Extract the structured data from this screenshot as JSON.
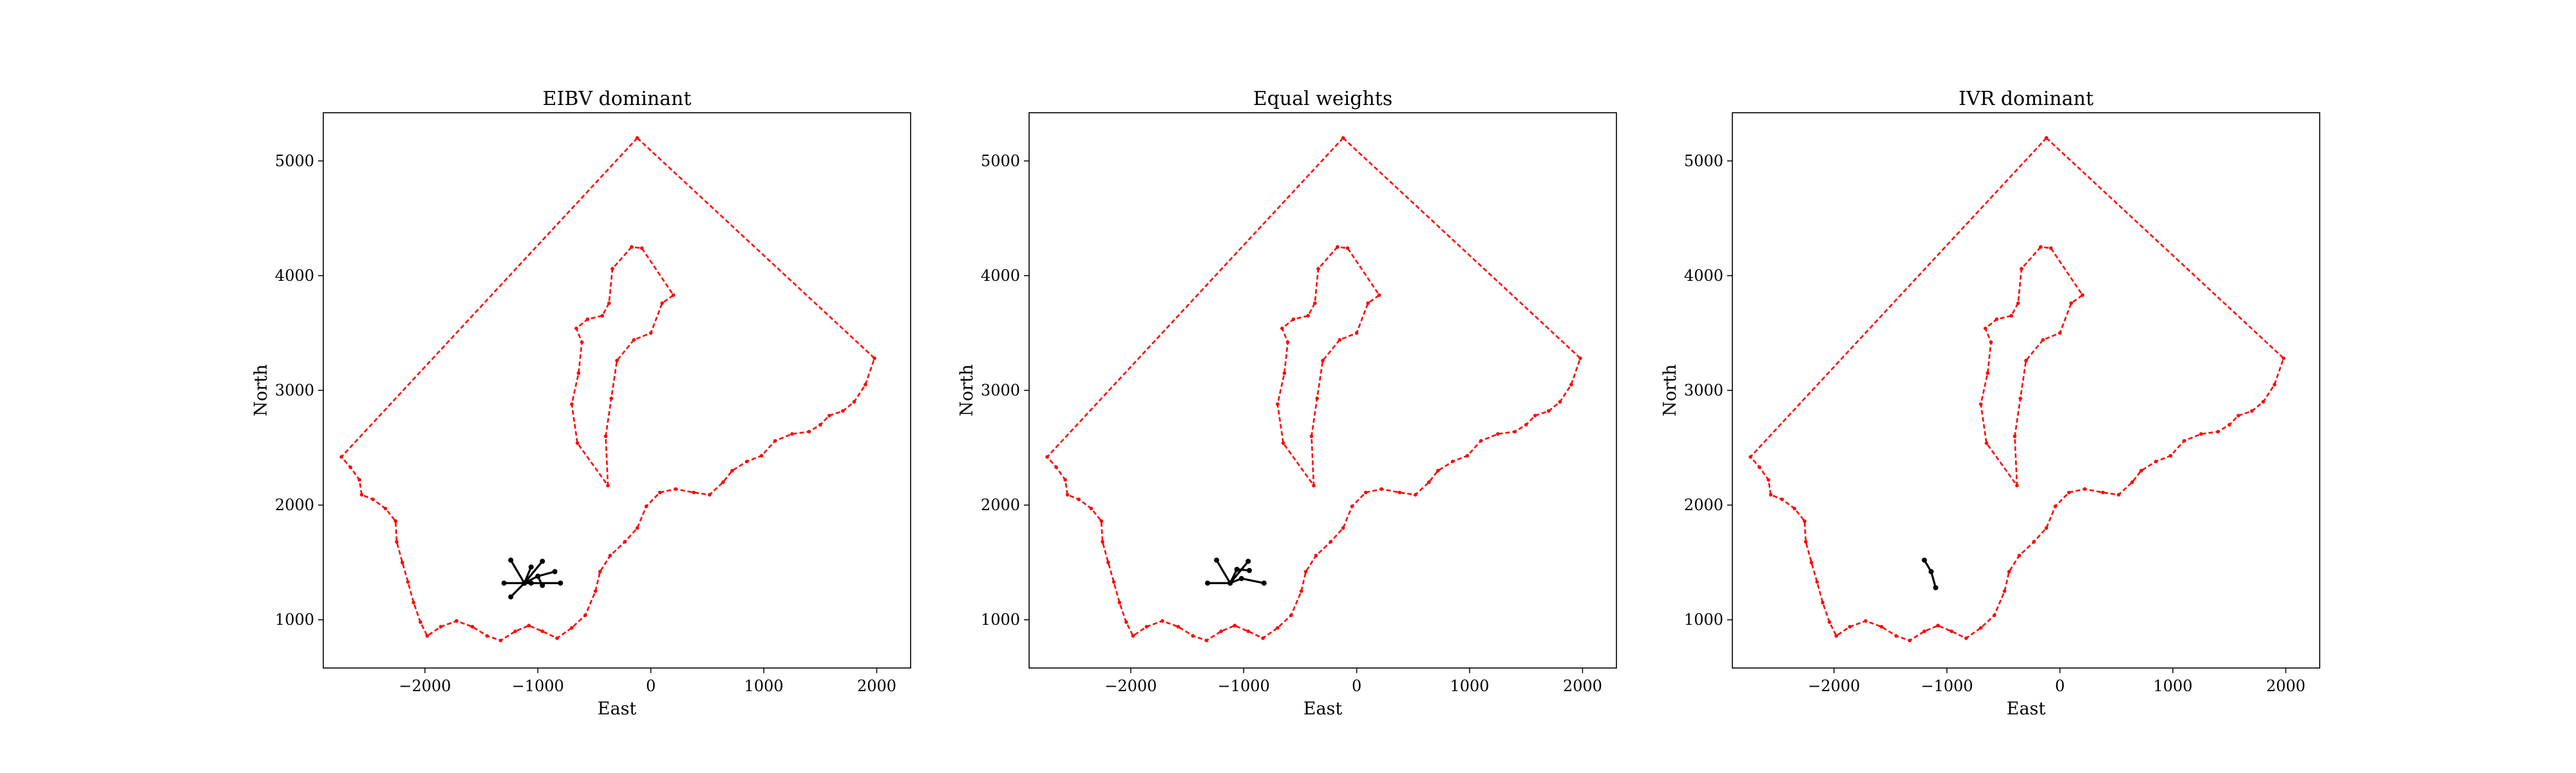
{
  "chart_data": [
    {
      "type": "line",
      "title": "EIBV dominant",
      "xlabel": "East",
      "ylabel": "North",
      "xlim": [
        -2900,
        2300
      ],
      "ylim": [
        580,
        5420
      ],
      "xticks": [
        -2000,
        -1000,
        0,
        1000,
        2000
      ],
      "yticks": [
        1000,
        2000,
        3000,
        4000,
        5000
      ],
      "grid": false,
      "path": {
        "color": "#000000",
        "segments": [
          [
            [
              -1120,
              1320
            ],
            [
              -1240,
              1520
            ]
          ],
          [
            [
              -1120,
              1320
            ],
            [
              -1060,
              1460
            ]
          ],
          [
            [
              -1120,
              1320
            ],
            [
              -960,
              1510
            ]
          ],
          [
            [
              -1120,
              1320
            ],
            [
              -1300,
              1320
            ]
          ],
          [
            [
              -1120,
              1320
            ],
            [
              -1060,
              1320
            ],
            [
              -800,
              1320
            ]
          ],
          [
            [
              -1120,
              1320
            ],
            [
              -1240,
              1200
            ]
          ],
          [
            [
              -1120,
              1320
            ],
            [
              -1000,
              1380
            ],
            [
              -850,
              1420
            ]
          ],
          [
            [
              -1000,
              1380
            ],
            [
              -960,
              1300
            ]
          ]
        ]
      }
    },
    {
      "type": "line",
      "title": "Equal weights",
      "xlabel": "East",
      "ylabel": "North",
      "xlim": [
        -2900,
        2300
      ],
      "ylim": [
        580,
        5420
      ],
      "xticks": [
        -2000,
        -1000,
        0,
        1000,
        2000
      ],
      "yticks": [
        1000,
        2000,
        3000,
        4000,
        5000
      ],
      "grid": false,
      "path": {
        "color": "#000000",
        "segments": [
          [
            [
              -1120,
              1320
            ],
            [
              -1240,
              1520
            ]
          ],
          [
            [
              -1120,
              1320
            ],
            [
              -960,
              1510
            ]
          ],
          [
            [
              -1120,
              1320
            ],
            [
              -1060,
              1440
            ],
            [
              -950,
              1430
            ]
          ],
          [
            [
              -1120,
              1320
            ],
            [
              -1320,
              1320
            ]
          ],
          [
            [
              -1120,
              1320
            ],
            [
              -1020,
              1360
            ],
            [
              -820,
              1320
            ]
          ]
        ]
      }
    },
    {
      "type": "line",
      "title": "IVR dominant",
      "xlabel": "East",
      "ylabel": "North",
      "xlim": [
        -2900,
        2300
      ],
      "ylim": [
        580,
        5420
      ],
      "xticks": [
        -2000,
        -1000,
        0,
        1000,
        2000
      ],
      "yticks": [
        1000,
        2000,
        3000,
        4000,
        5000
      ],
      "grid": false,
      "path": {
        "color": "#000000",
        "segments": [
          [
            [
              -1200,
              1520
            ],
            [
              -1140,
              1420
            ],
            [
              -1100,
              1280
            ]
          ]
        ]
      }
    }
  ],
  "boundary": {
    "color": "#ff0000",
    "outer": [
      [
        -120,
        5200
      ],
      [
        1980,
        3280
      ],
      [
        1900,
        3050
      ],
      [
        1800,
        2900
      ],
      [
        1700,
        2820
      ],
      [
        1580,
        2780
      ],
      [
        1500,
        2700
      ],
      [
        1400,
        2640
      ],
      [
        1250,
        2620
      ],
      [
        1100,
        2560
      ],
      [
        980,
        2430
      ],
      [
        850,
        2380
      ],
      [
        720,
        2300
      ],
      [
        640,
        2200
      ],
      [
        520,
        2090
      ],
      [
        380,
        2110
      ],
      [
        220,
        2140
      ],
      [
        80,
        2110
      ],
      [
        -40,
        1990
      ],
      [
        -120,
        1800
      ],
      [
        -230,
        1680
      ],
      [
        -360,
        1560
      ],
      [
        -450,
        1420
      ],
      [
        -490,
        1250
      ],
      [
        -580,
        1040
      ],
      [
        -700,
        930
      ],
      [
        -830,
        840
      ],
      [
        -960,
        900
      ],
      [
        -1080,
        950
      ],
      [
        -1200,
        900
      ],
      [
        -1330,
        820
      ],
      [
        -1450,
        860
      ],
      [
        -1580,
        940
      ],
      [
        -1720,
        990
      ],
      [
        -1860,
        940
      ],
      [
        -1980,
        860
      ],
      [
        -2040,
        980
      ],
      [
        -2100,
        1150
      ],
      [
        -2150,
        1330
      ],
      [
        -2200,
        1500
      ],
      [
        -2250,
        1680
      ],
      [
        -2260,
        1860
      ],
      [
        -2350,
        1970
      ],
      [
        -2460,
        2050
      ],
      [
        -2560,
        2090
      ],
      [
        -2580,
        2220
      ],
      [
        -2660,
        2330
      ],
      [
        -2740,
        2420
      ],
      [
        -120,
        5200
      ]
    ],
    "inner": [
      [
        -170,
        4250
      ],
      [
        -340,
        4060
      ],
      [
        -370,
        3760
      ],
      [
        -430,
        3650
      ],
      [
        -560,
        3620
      ],
      [
        -660,
        3540
      ],
      [
        -610,
        3420
      ],
      [
        -640,
        3150
      ],
      [
        -700,
        2880
      ],
      [
        -650,
        2540
      ],
      [
        -380,
        2170
      ],
      [
        -400,
        2600
      ],
      [
        -350,
        2930
      ],
      [
        -300,
        3260
      ],
      [
        -150,
        3440
      ],
      [
        0,
        3500
      ],
      [
        100,
        3760
      ],
      [
        200,
        3830
      ],
      [
        -80,
        4240
      ],
      [
        -170,
        4250
      ]
    ]
  }
}
